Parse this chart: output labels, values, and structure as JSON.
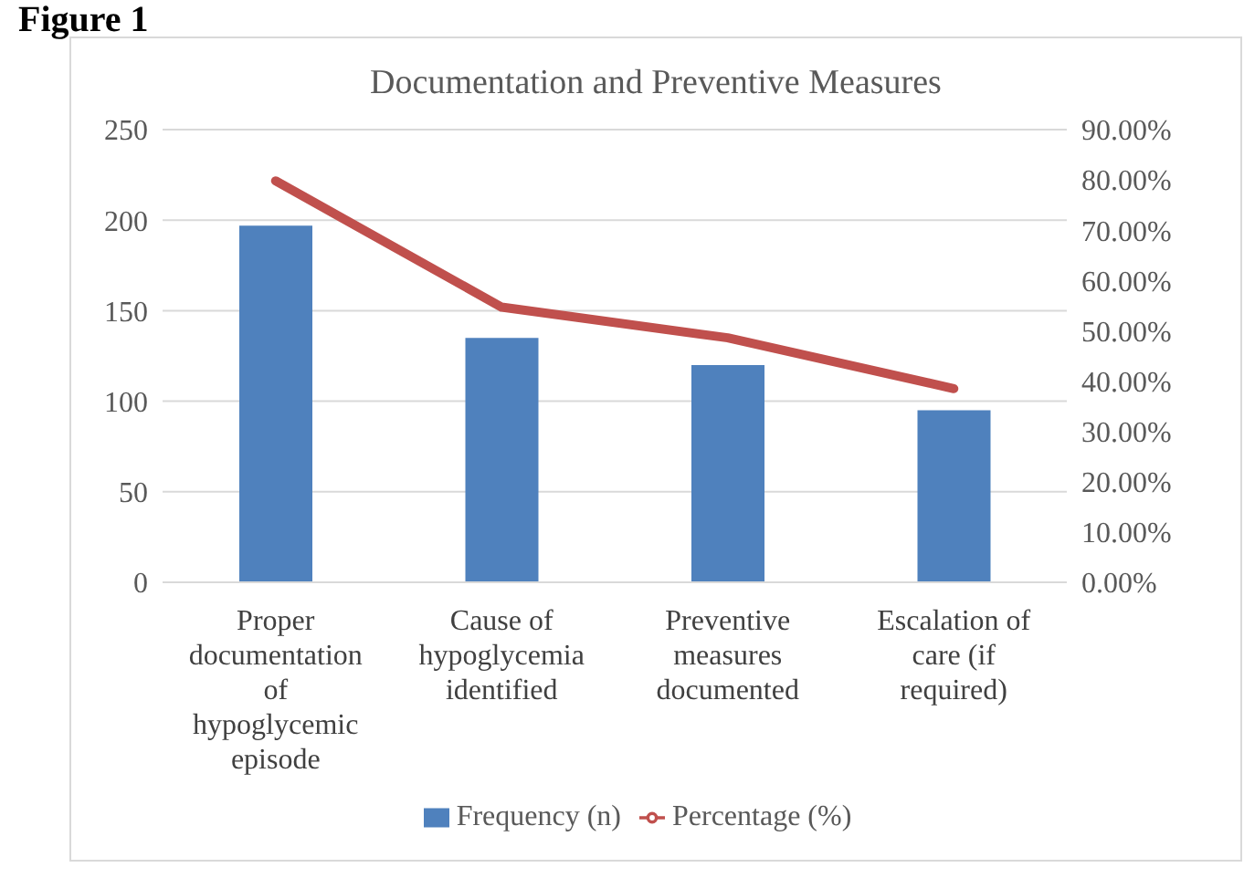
{
  "chart_data": {
    "type": "bar",
    "title": "Documentation and Preventive Measures",
    "annotations": [
      "Figure 1"
    ],
    "categories": [
      "Proper documentation of hypoglycemic episode",
      "Cause of hypoglycemia identified",
      "Preventive measures documented",
      "Escalation of care (if required)"
    ],
    "series": [
      {
        "name": "Frequency (n)",
        "color": "#4f81bd",
        "values": [
          197,
          135,
          120,
          95
        ]
      },
      {
        "name": "Percentage (%)",
        "type": "line",
        "axis": "y2",
        "color": "#c0504d",
        "values": [
          79.8,
          54.7,
          48.6,
          38.5
        ]
      }
    ],
    "ylim": [
      0,
      250
    ],
    "yticks": [
      0,
      50,
      100,
      150,
      200,
      250
    ],
    "y2lim": [
      0,
      90
    ],
    "y2ticks": [
      {
        "value": 0,
        "label": "0.00%"
      },
      {
        "value": 10,
        "label": "10.00%"
      },
      {
        "value": 20,
        "label": "20.00%"
      },
      {
        "value": 30,
        "label": "30.00%"
      },
      {
        "value": 40,
        "label": "40.00%"
      },
      {
        "value": 50,
        "label": "50.00%"
      },
      {
        "value": 60,
        "label": "60.00%"
      },
      {
        "value": 70,
        "label": "70.00%"
      },
      {
        "value": 80,
        "label": "80.00%"
      },
      {
        "value": 90,
        "label": "90.00%"
      }
    ],
    "grid": "y",
    "legend": "bottom",
    "marker": "none"
  }
}
